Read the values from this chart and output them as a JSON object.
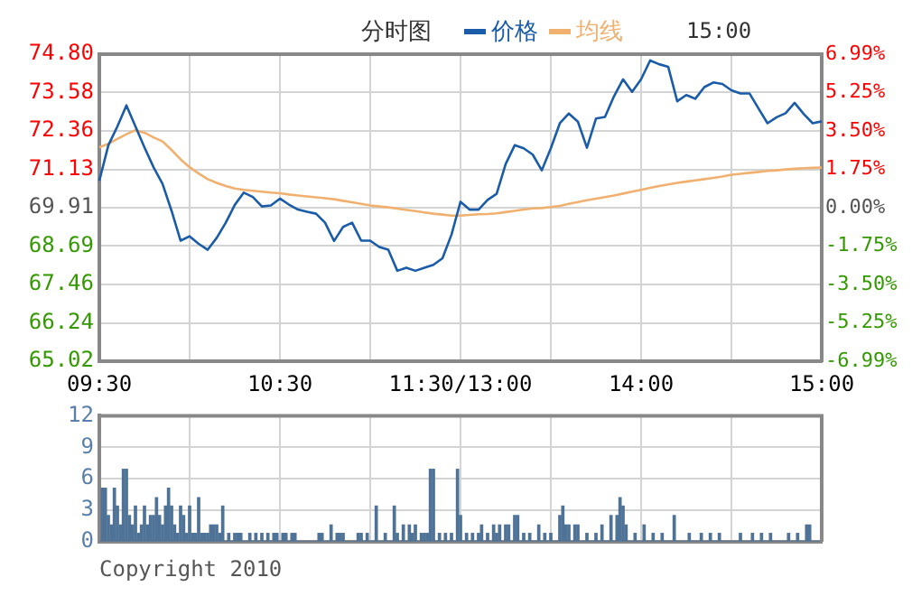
{
  "chart_data": [
    {
      "type": "line",
      "title": "分时图",
      "legend": "top",
      "grid": true,
      "annotations": [
        "15:00"
      ],
      "categories": [
        "09:30",
        null,
        null,
        null,
        null,
        null,
        null,
        null,
        null,
        null,
        null,
        null,
        null,
        null,
        null,
        null,
        null,
        null,
        null,
        null,
        "10:30",
        null,
        null,
        null,
        null,
        null,
        null,
        null,
        null,
        null,
        null,
        null,
        null,
        null,
        null,
        null,
        null,
        null,
        null,
        null,
        "11:30/13:00",
        null,
        null,
        null,
        null,
        null,
        null,
        null,
        null,
        null,
        null,
        null,
        null,
        null,
        null,
        null,
        null,
        null,
        null,
        null,
        "14:00",
        null,
        null,
        null,
        null,
        null,
        null,
        null,
        null,
        null,
        null,
        null,
        null,
        null,
        null,
        null,
        null,
        null,
        null,
        null,
        "15:00"
      ],
      "ylim": [
        65.02,
        74.8
      ],
      "yticks": [
        65.02,
        66.24,
        67.46,
        68.69,
        69.91,
        71.13,
        72.36,
        73.58,
        {
          "value": 74.8,
          "label": "74.80"
        }
      ],
      "y2lim": [
        -6.99,
        6.99
      ],
      "y2ticks": [
        {
          "value": -6.99,
          "label": "-6.99%"
        },
        {
          "value": -5.25,
          "label": "-5.25%"
        },
        {
          "value": -3.5,
          "label": "-3.50%"
        },
        {
          "value": -1.75,
          "label": "-1.75%"
        },
        {
          "value": 0,
          "label": "0.00%"
        },
        {
          "value": 1.75,
          "label": "1.75%"
        },
        {
          "value": 3.5,
          "label": "3.50%"
        },
        {
          "value": 5.25,
          "label": "5.25%"
        },
        {
          "value": 6.99,
          "label": "6.99%"
        }
      ],
      "series": [
        {
          "name": "价格",
          "color": "#1a5ca8",
          "values": [
            70.77,
            71.9,
            72.5,
            73.17,
            72.5,
            71.83,
            71.2,
            70.67,
            69.81,
            68.86,
            69.0,
            68.76,
            68.57,
            68.95,
            69.43,
            70.0,
            70.39,
            70.25,
            69.95,
            69.98,
            70.2,
            70.01,
            69.85,
            69.78,
            69.72,
            69.43,
            68.85,
            69.3,
            69.43,
            68.86,
            68.86,
            68.66,
            68.57,
            67.9,
            68.0,
            67.9,
            68.0,
            68.09,
            68.3,
            69.05,
            70.1,
            69.85,
            69.85,
            70.16,
            70.35,
            71.3,
            71.9,
            71.8,
            71.6,
            71.1,
            71.8,
            72.6,
            72.91,
            72.65,
            71.82,
            72.75,
            72.8,
            73.46,
            74.0,
            73.6,
            74.0,
            74.6,
            74.48,
            74.4,
            73.3,
            73.5,
            73.38,
            73.75,
            73.9,
            73.85,
            73.65,
            73.55,
            73.55,
            73.07,
            72.6,
            72.79,
            72.92,
            73.25,
            72.9,
            72.6,
            72.66
          ]
        },
        {
          "name": "均线",
          "color": "#f0b070",
          "values": [
            71.83,
            71.95,
            72.1,
            72.25,
            72.38,
            72.3,
            72.15,
            72.02,
            71.75,
            71.45,
            71.2,
            71.0,
            70.82,
            70.7,
            70.6,
            70.52,
            70.48,
            70.45,
            70.42,
            70.39,
            70.37,
            70.33,
            70.3,
            70.27,
            70.24,
            70.21,
            70.18,
            70.13,
            70.08,
            70.03,
            69.98,
            69.95,
            69.92,
            69.88,
            69.84,
            69.8,
            69.76,
            69.72,
            69.69,
            69.66,
            69.66,
            69.68,
            69.7,
            69.71,
            69.73,
            69.77,
            69.81,
            69.85,
            69.89,
            69.9,
            69.93,
            69.97,
            70.03,
            70.09,
            70.15,
            70.2,
            70.25,
            70.3,
            70.36,
            70.42,
            70.48,
            70.54,
            70.6,
            70.65,
            70.7,
            70.74,
            70.78,
            70.82,
            70.86,
            70.9,
            70.96,
            70.99,
            71.02,
            71.05,
            71.08,
            71.1,
            71.13,
            71.15,
            71.17,
            71.18,
            71.19
          ]
        }
      ]
    },
    {
      "type": "bar",
      "color": "#4f7396",
      "grid": true,
      "tick_labels": "y",
      "annotations": [
        "Copyright 2010"
      ],
      "categories": [
        null,
        null,
        null,
        null,
        null,
        null,
        null,
        null,
        null,
        null,
        null,
        null,
        null,
        null,
        null,
        null,
        null,
        null,
        null,
        null,
        null,
        null,
        null,
        null,
        null,
        null,
        null,
        null,
        null,
        null,
        null,
        null,
        null,
        null,
        null,
        null,
        null,
        null,
        null,
        null,
        null,
        null,
        null,
        null,
        null,
        null,
        null,
        null,
        null,
        null,
        null,
        null,
        null,
        null,
        null,
        null,
        null,
        null,
        null,
        null,
        null,
        null,
        null,
        null,
        null,
        null,
        null,
        null,
        null,
        null,
        null,
        null,
        null,
        null,
        null,
        null,
        null,
        null,
        null,
        null,
        null,
        null,
        null,
        null,
        null,
        null,
        null,
        null,
        null,
        null,
        null,
        null,
        null,
        null,
        null,
        null,
        null,
        null,
        null,
        null,
        null,
        null,
        null,
        null,
        null,
        null,
        null,
        null,
        null,
        null,
        null,
        null,
        null,
        null,
        null,
        null,
        null,
        null,
        null,
        null,
        null,
        null,
        null,
        null,
        null,
        null,
        null,
        null,
        null,
        null,
        null,
        null,
        null,
        null,
        null,
        null,
        null,
        null,
        null,
        null,
        null,
        null,
        null,
        null,
        null,
        null,
        null,
        null,
        null,
        null,
        null,
        null,
        null,
        null,
        null,
        null,
        null,
        null,
        null,
        null,
        null,
        null,
        null,
        null,
        null,
        null,
        null,
        null,
        null,
        null,
        null,
        null,
        null,
        null,
        null,
        null,
        null,
        null,
        null,
        null,
        null,
        null,
        null,
        null,
        null,
        null,
        null,
        null,
        null,
        null,
        null,
        null,
        null,
        null,
        null,
        null,
        null,
        null,
        null,
        null,
        null,
        null,
        null,
        null,
        null,
        null,
        null,
        null,
        null,
        null,
        null,
        null,
        null,
        null,
        null,
        null,
        null,
        null,
        null,
        null,
        null,
        null,
        null,
        null,
        null,
        null,
        null,
        null,
        null,
        null,
        null,
        null,
        null,
        null,
        null,
        null,
        null,
        null,
        null,
        null,
        null
      ],
      "ylim": [
        0,
        12
      ],
      "yticks": [
        0,
        3,
        6,
        9,
        12
      ],
      "values": [
        0,
        5.1,
        5.1,
        2.5,
        1.6,
        5.1,
        3.4,
        1.6,
        6.9,
        6.9,
        2.5,
        1.6,
        3.4,
        0.8,
        1.6,
        3.4,
        1.6,
        2.5,
        2.5,
        4.2,
        2.5,
        1.6,
        3.4,
        5.1,
        3.4,
        1.6,
        0.8,
        3.4,
        2.5,
        0.8,
        3.4,
        0.8,
        0.8,
        4.2,
        0.8,
        0.8,
        0.8,
        1.6,
        1.6,
        1.6,
        0.8,
        3.4,
        0,
        0.8,
        0,
        0.8,
        0.8,
        0.8,
        0,
        0,
        0.8,
        0,
        0.8,
        0,
        0.8,
        0,
        0.8,
        0,
        0.8,
        0.8,
        0,
        0.8,
        0.8,
        0,
        0.8,
        0.8,
        0,
        0,
        0,
        0,
        0,
        0,
        0,
        0.8,
        0.8,
        0,
        0,
        1.6,
        0,
        0.8,
        0.8,
        0.8,
        0,
        0,
        0,
        0,
        0.8,
        0.8,
        0,
        0.8,
        0,
        0,
        3.4,
        0,
        0,
        0.8,
        0,
        0,
        3.4,
        0.8,
        0,
        1.6,
        0,
        1.6,
        0.8,
        1.6,
        0,
        0.8,
        0.8,
        0.8,
        6.9,
        6.9,
        0,
        0.8,
        0,
        0.8,
        0,
        0.8,
        0,
        6.9,
        2.5,
        0,
        0.8,
        0,
        0.8,
        0,
        0.8,
        1.6,
        0,
        0.8,
        0,
        1.6,
        0.8,
        1.6,
        0,
        1.6,
        1.6,
        0,
        2.5,
        2.5,
        0,
        0.8,
        0,
        0.8,
        0,
        0,
        1.6,
        0,
        0.8,
        0,
        0.8,
        0,
        0,
        2.5,
        3.4,
        1.6,
        1.6,
        0,
        1.6,
        1.6,
        0,
        0,
        0.8,
        0,
        0,
        0.8,
        0,
        1.6,
        0,
        0,
        2.5,
        0,
        2.5,
        4.2,
        3.4,
        1.6,
        0,
        0,
        0.8,
        0,
        0,
        1.6,
        0,
        0,
        0.8,
        0,
        0,
        0.8,
        0,
        0,
        0,
        2.5,
        0,
        0,
        0,
        0,
        0.8,
        0,
        0,
        0,
        0.8,
        0,
        0,
        0.8,
        0,
        0,
        0.8,
        0,
        0,
        0,
        0,
        0,
        0,
        0.8,
        0,
        0,
        0,
        0.8,
        0,
        0,
        0.8,
        0,
        0,
        0.8,
        0,
        0,
        0,
        0,
        0,
        0.8,
        0,
        0,
        0.8,
        0,
        0,
        1.6,
        1.6,
        0,
        0,
        0,
        0
      ]
    }
  ]
}
